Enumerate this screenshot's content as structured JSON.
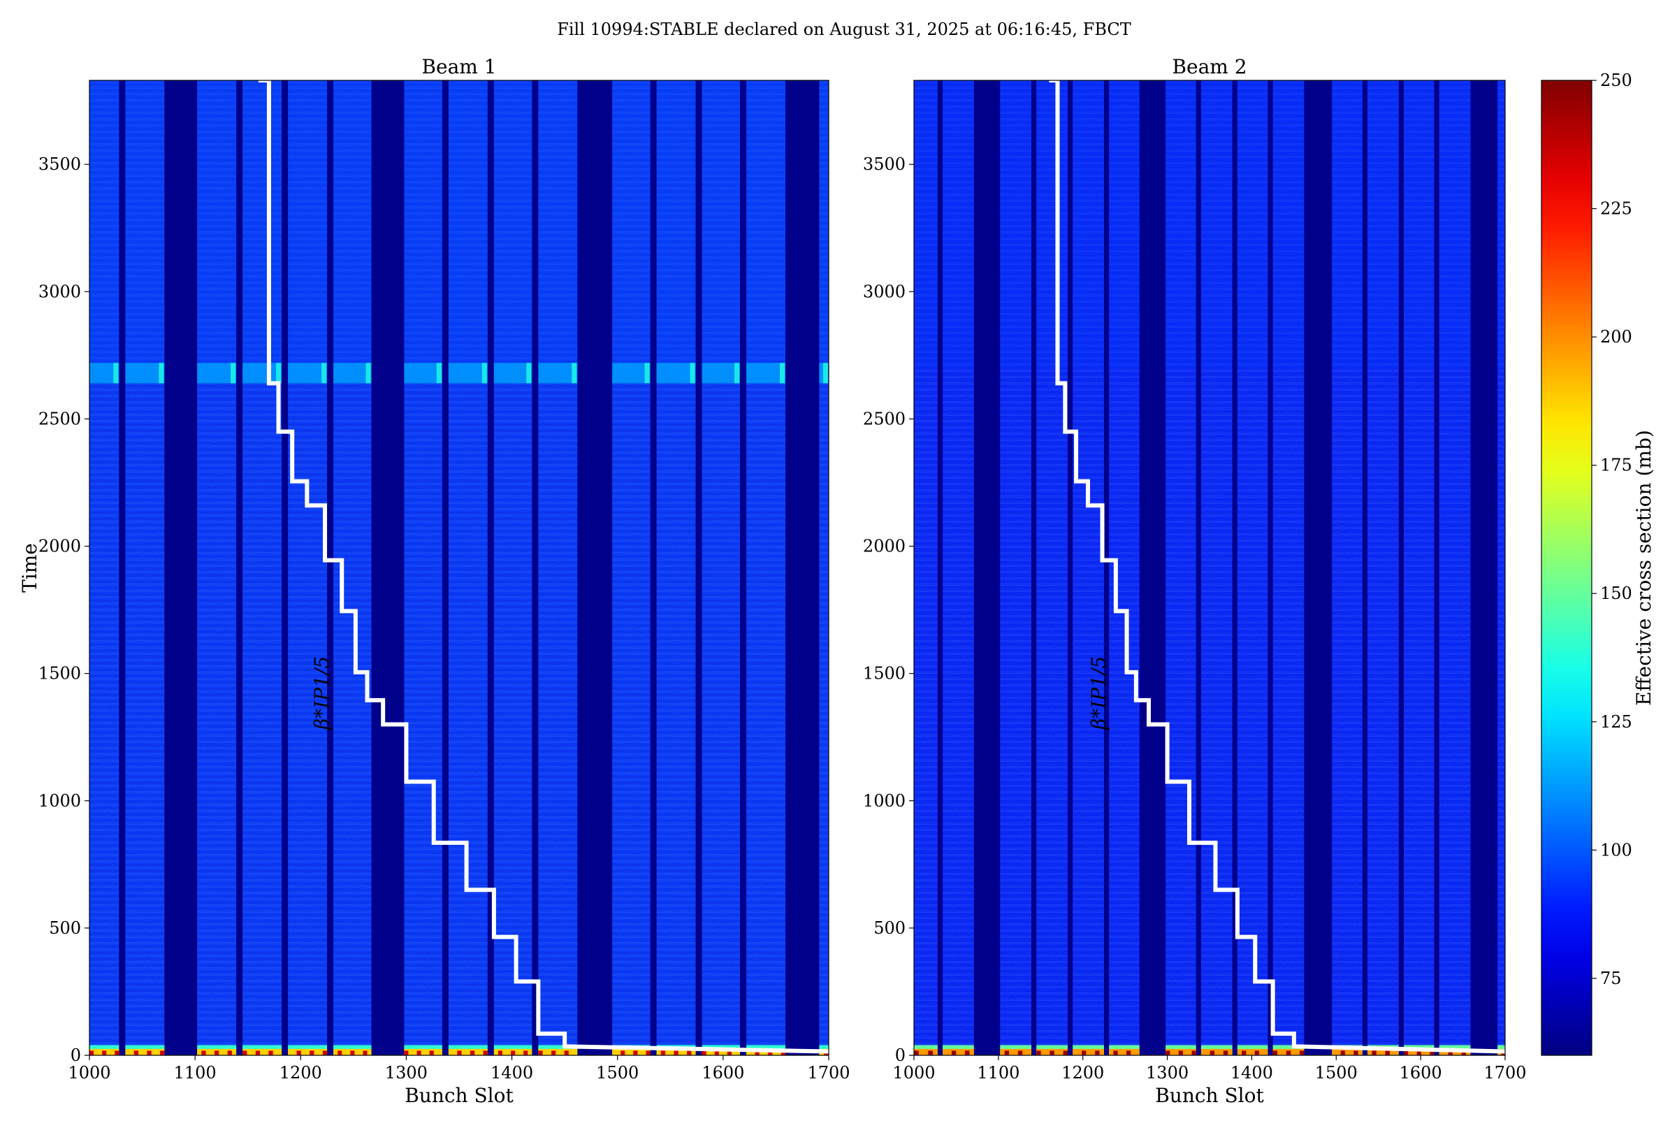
{
  "figure": {
    "title": "Fill 10994:STABLE declared on August 31, 2025 at 06:16:45, FBCT"
  },
  "colorbar": {
    "label": "Effective cross section (mb)",
    "range": [
      60,
      250
    ],
    "ticks": [
      "75",
      "100",
      "125",
      "150",
      "175",
      "200",
      "225",
      "250"
    ],
    "tick_values": [
      75,
      100,
      125,
      150,
      175,
      200,
      225,
      250
    ],
    "colormap": "jet",
    "colors": [
      "#00007f",
      "#0000ff",
      "#007fff",
      "#00ffff",
      "#7fff7f",
      "#ffff00",
      "#ff7f00",
      "#ff0000",
      "#7f0000"
    ]
  },
  "chart_data": [
    {
      "type": "heatmap",
      "title": "Beam 1",
      "xlabel": "Bunch Slot",
      "ylabel": "Time",
      "xlim": [
        1000,
        1700
      ],
      "ylim": [
        0,
        3830
      ],
      "xticks": [
        "1000",
        "1100",
        "1200",
        "1300",
        "1400",
        "1500",
        "1600",
        "1700"
      ],
      "xtick_values": [
        1000,
        1100,
        1200,
        1300,
        1400,
        1500,
        1600,
        1700
      ],
      "yticks": [
        "0",
        "500",
        "1000",
        "1500",
        "2000",
        "2500",
        "3000",
        "3500"
      ],
      "ytick_values": [
        0,
        500,
        1000,
        1500,
        2000,
        2500,
        3000,
        3500
      ],
      "background_value": 62,
      "filled_slot_ranges": [
        [
          1000,
          1028
        ],
        [
          1034,
          1071
        ],
        [
          1102,
          1139
        ],
        [
          1145,
          1182
        ],
        [
          1188,
          1225
        ],
        [
          1231,
          1267
        ],
        [
          1298,
          1334
        ],
        [
          1340,
          1377
        ],
        [
          1383,
          1419
        ],
        [
          1425,
          1462
        ],
        [
          1495,
          1531
        ],
        [
          1537,
          1574
        ],
        [
          1580,
          1616
        ],
        [
          1622,
          1659
        ],
        [
          1691,
          1700
        ]
      ],
      "bulk_value": 92,
      "early_time_value_range": [
        140,
        235
      ],
      "band": {
        "time_range": [
          2640,
          2720
        ],
        "value": 112
      },
      "beta_annotation": "β*IP1/5",
      "beta_line": {
        "slots": [
          1450,
          1700
        ],
        "times": [
          35,
          15
        ],
        "steps": [
          {
            "slot": 1425,
            "time": 85
          },
          {
            "slot": 1404,
            "time": 290
          },
          {
            "slot": 1383,
            "time": 465
          },
          {
            "slot": 1357,
            "time": 650
          },
          {
            "slot": 1326,
            "time": 835
          },
          {
            "slot": 1300,
            "time": 1075
          },
          {
            "slot": 1278,
            "time": 1300
          },
          {
            "slot": 1263,
            "time": 1395
          },
          {
            "slot": 1252,
            "time": 1505
          },
          {
            "slot": 1239,
            "time": 1745
          },
          {
            "slot": 1223,
            "time": 1945
          },
          {
            "slot": 1206,
            "time": 2160
          },
          {
            "slot": 1192,
            "time": 2255
          },
          {
            "slot": 1179,
            "time": 2450
          },
          {
            "slot": 1170,
            "time": 2640
          },
          {
            "slot": 1160,
            "time": 3830
          }
        ]
      }
    },
    {
      "type": "heatmap",
      "title": "Beam 2",
      "xlabel": "Bunch Slot",
      "ylabel": "",
      "xlim": [
        1000,
        1700
      ],
      "ylim": [
        0,
        3830
      ],
      "xticks": [
        "1000",
        "1100",
        "1200",
        "1300",
        "1400",
        "1500",
        "1600",
        "1700"
      ],
      "xtick_values": [
        1000,
        1100,
        1200,
        1300,
        1400,
        1500,
        1600,
        1700
      ],
      "yticks": [
        "0",
        "500",
        "1000",
        "1500",
        "2000",
        "2500",
        "3000",
        "3500"
      ],
      "ytick_values": [
        0,
        500,
        1000,
        1500,
        2000,
        2500,
        3000,
        3500
      ],
      "background_value": 62,
      "filled_slot_ranges": [
        [
          1000,
          1028
        ],
        [
          1034,
          1071
        ],
        [
          1102,
          1139
        ],
        [
          1145,
          1182
        ],
        [
          1188,
          1225
        ],
        [
          1231,
          1267
        ],
        [
          1298,
          1334
        ],
        [
          1340,
          1377
        ],
        [
          1383,
          1419
        ],
        [
          1425,
          1462
        ],
        [
          1495,
          1531
        ],
        [
          1537,
          1574
        ],
        [
          1580,
          1616
        ],
        [
          1622,
          1659
        ],
        [
          1691,
          1700
        ]
      ],
      "bulk_value": 88,
      "early_time_value_range": [
        150,
        245
      ],
      "band": null,
      "beta_annotation": "β*IP1/5",
      "beta_line": {
        "slots": [
          1450,
          1700
        ],
        "times": [
          35,
          15
        ],
        "steps": [
          {
            "slot": 1425,
            "time": 85
          },
          {
            "slot": 1404,
            "time": 290
          },
          {
            "slot": 1383,
            "time": 465
          },
          {
            "slot": 1357,
            "time": 650
          },
          {
            "slot": 1326,
            "time": 835
          },
          {
            "slot": 1300,
            "time": 1075
          },
          {
            "slot": 1278,
            "time": 1300
          },
          {
            "slot": 1263,
            "time": 1395
          },
          {
            "slot": 1252,
            "time": 1505
          },
          {
            "slot": 1239,
            "time": 1745
          },
          {
            "slot": 1223,
            "time": 1945
          },
          {
            "slot": 1206,
            "time": 2160
          },
          {
            "slot": 1192,
            "time": 2255
          },
          {
            "slot": 1179,
            "time": 2450
          },
          {
            "slot": 1170,
            "time": 2640
          },
          {
            "slot": 1160,
            "time": 3830
          }
        ]
      }
    }
  ]
}
